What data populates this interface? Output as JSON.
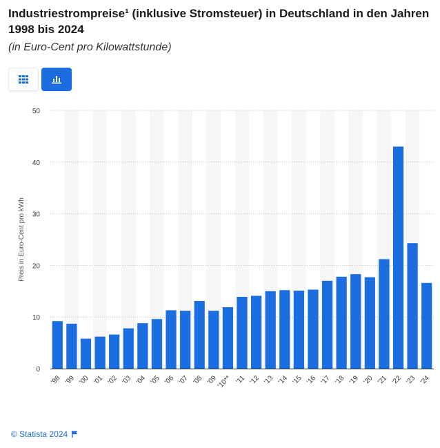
{
  "header": {
    "title": "Industriestrompreise¹ (inklusive Stromsteuer) in Deutschland in den Jahren 1998 bis 2024",
    "subtitle": "(in Euro-Cent pro Kilowattstunde)"
  },
  "toolbar": {
    "table_icon": "grid-icon",
    "chart_icon": "bar-chart-icon",
    "active": "chart",
    "accent_color": "#1c6de0"
  },
  "chart_data": {
    "type": "bar",
    "categories": [
      "'98",
      "'99",
      "'00",
      "'01",
      "'02",
      "'03",
      "'04",
      "'05",
      "'06",
      "'07",
      "'08",
      "'09",
      "'10**",
      "'11",
      "'12",
      "'13",
      "'14",
      "'15",
      "'16",
      "'17",
      "'18",
      "'19",
      "'20",
      "'21",
      "'22",
      "'23",
      "'24"
    ],
    "series": [
      {
        "values": [
          9.2,
          8.7,
          5.8,
          6.2,
          6.6,
          7.8,
          8.8,
          9.6,
          11.3,
          11.2,
          13.1,
          11.2,
          11.9,
          13.9,
          14.1,
          15.0,
          15.2,
          15.1,
          15.3,
          17.0,
          17.8,
          18.3,
          17.7,
          21.2,
          43.0,
          24.3,
          16.6
        ],
        "color": "#1c6de0"
      }
    ],
    "ylabel": "Preis in Euro-Cent pro kWh",
    "ylim": [
      0,
      50
    ],
    "yticks": [
      0,
      10,
      20,
      30,
      40,
      50
    ],
    "grid": true,
    "legend": "none"
  },
  "footer": {
    "source": "© Statista 2024",
    "flag_icon": "flag-icon"
  }
}
